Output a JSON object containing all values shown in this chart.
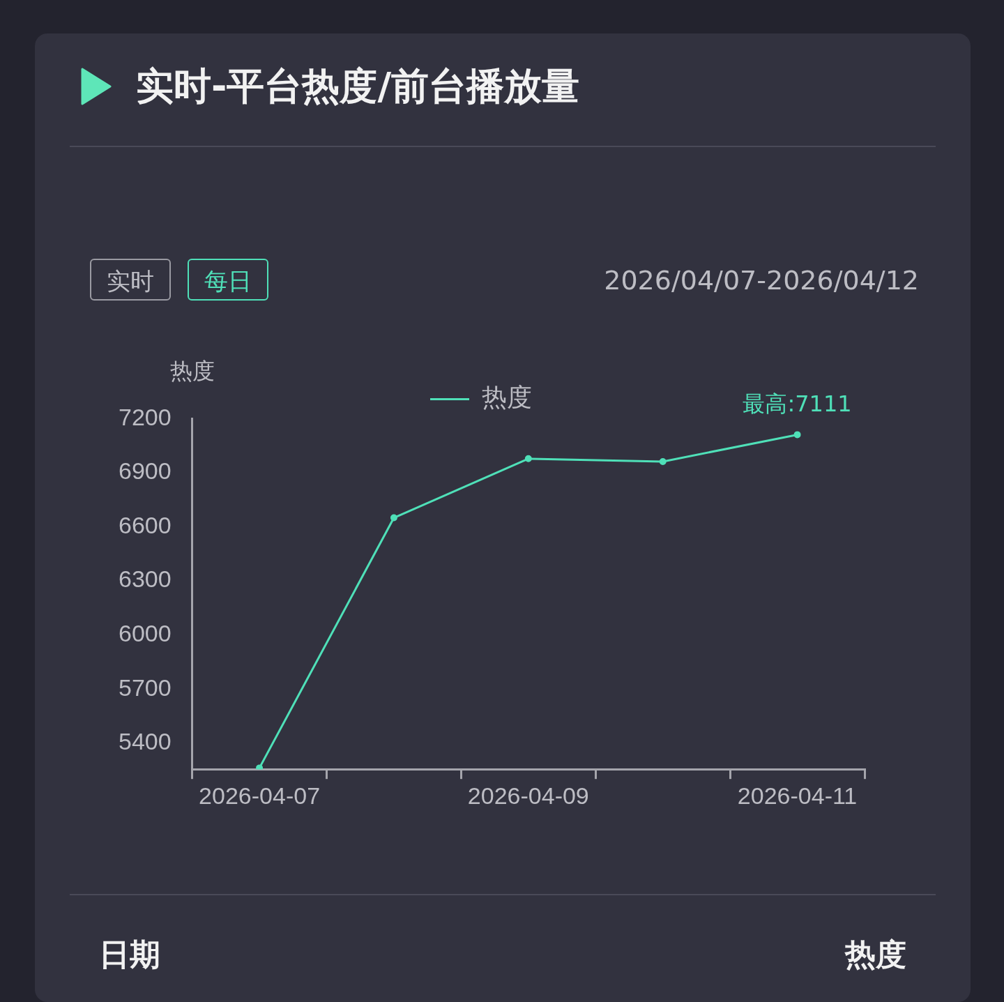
{
  "chart_data": {
    "type": "line",
    "title": "实时-平台热度/前台播放量",
    "ylabel": "热度",
    "categories": [
      "2026-04-07",
      null,
      "2026-04-09",
      null,
      "2026-04-11"
    ],
    "series": [
      {
        "name": "热度",
        "color": "#4fe0b8",
        "values": [
          5262,
          6650,
          6978,
          6962,
          7111
        ]
      }
    ],
    "ylim": [
      5255,
      7200
    ],
    "yticks": [
      5400,
      5700,
      6000,
      6300,
      6600,
      6900,
      7200
    ],
    "grid": false,
    "legend": "top",
    "marker": "circle",
    "line_style": "solid",
    "annotations": [
      "实时",
      "每日",
      "2026/04/07-2026/04/12",
      {
        "text": "最高:7111",
        "x": "2026-04-11",
        "y": 7111
      },
      "日期",
      "热度"
    ]
  }
}
